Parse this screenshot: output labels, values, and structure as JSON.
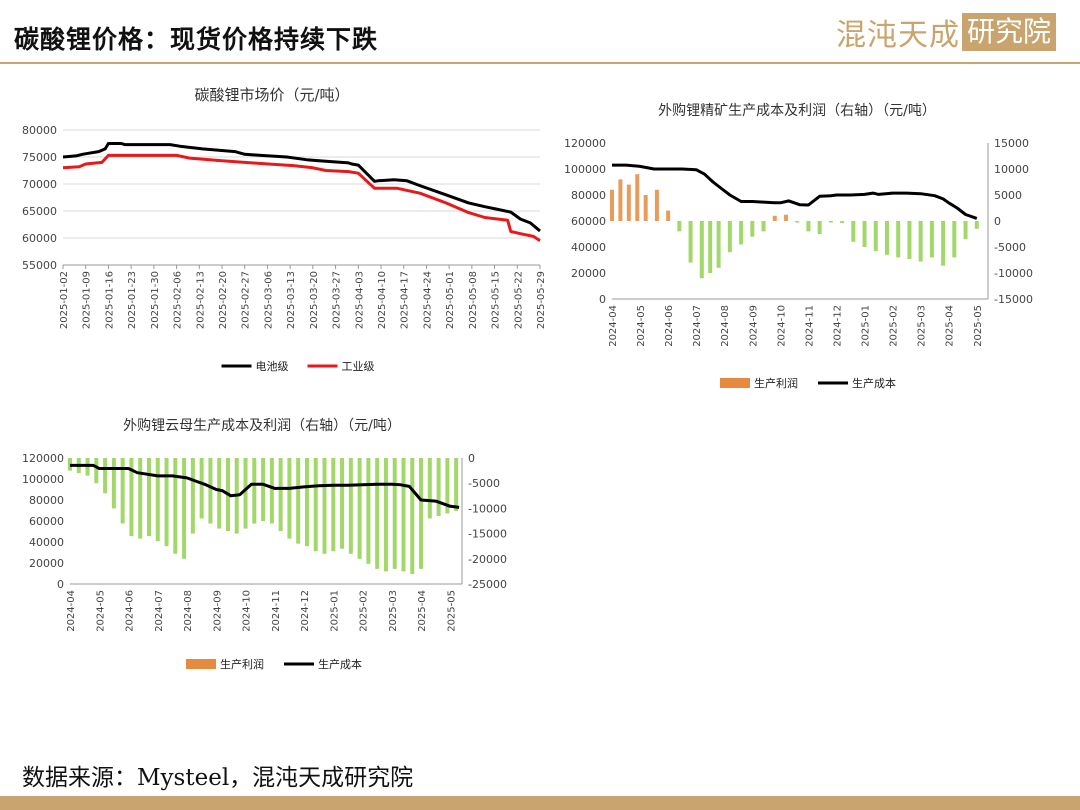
{
  "page": {
    "title": "碳酸锂价格：现货价格持续下跌",
    "logo_left": "混沌天成",
    "logo_right": "研究院",
    "source": "数据来源：Mysteel，混沌天成研究院",
    "accent_color": "#c9a46e"
  },
  "chart_data": [
    {
      "id": "c1",
      "type": "line",
      "title": "碳酸锂市场价（元/吨）",
      "ylim": [
        55000,
        80000
      ],
      "yticks": [
        55000,
        60000,
        65000,
        70000,
        75000,
        80000
      ],
      "xticks": [
        "2025-01-02",
        "2025-01-09",
        "2025-01-16",
        "2025-01-23",
        "2025-01-30",
        "2025-02-06",
        "2025-02-13",
        "2025-02-20",
        "2025-02-27",
        "2025-03-06",
        "2025-03-13",
        "2025-03-20",
        "2025-03-27",
        "2025-04-03",
        "2025-04-10",
        "2025-04-17",
        "2025-04-24",
        "2025-05-01",
        "2025-05-08",
        "2025-05-15",
        "2025-05-22",
        "2025-05-29"
      ],
      "legend_position": "bottom",
      "grid": true,
      "series": [
        {
          "name": "电池级",
          "color": "#000000",
          "x": [
            "2025-01-02",
            "2025-01-06",
            "2025-01-08",
            "2025-01-10",
            "2025-01-13",
            "2025-01-15",
            "2025-01-16",
            "2025-01-20",
            "2025-01-21",
            "2025-02-04",
            "2025-02-07",
            "2025-02-14",
            "2025-02-24",
            "2025-02-27",
            "2025-03-04",
            "2025-03-12",
            "2025-03-18",
            "2025-03-24",
            "2025-03-31",
            "2025-04-01",
            "2025-04-03",
            "2025-04-08",
            "2025-04-09",
            "2025-04-14",
            "2025-04-18",
            "2025-04-22",
            "2025-04-30",
            "2025-05-07",
            "2025-05-12",
            "2025-05-16",
            "2025-05-20",
            "2025-05-23",
            "2025-05-26",
            "2025-05-28",
            "2025-05-29"
          ],
          "y": [
            75000,
            75200,
            75500,
            75700,
            76000,
            76500,
            77500,
            77500,
            77300,
            77300,
            77000,
            76500,
            76000,
            75500,
            75300,
            75000,
            74500,
            74200,
            73900,
            73700,
            73500,
            70500,
            70600,
            70800,
            70600,
            69700,
            68000,
            66500,
            65800,
            65300,
            64800,
            63500,
            62800,
            61800,
            61300
          ]
        },
        {
          "name": "工业级",
          "color": "#e8191b",
          "x": [
            "2025-01-02",
            "2025-01-07",
            "2025-01-09",
            "2025-01-14",
            "2025-01-16",
            "2025-02-06",
            "2025-02-10",
            "2025-02-20",
            "2025-03-04",
            "2025-03-14",
            "2025-03-20",
            "2025-03-24",
            "2025-03-31",
            "2025-04-03",
            "2025-04-08",
            "2025-04-15",
            "2025-04-22",
            "2025-04-30",
            "2025-05-07",
            "2025-05-12",
            "2025-05-19",
            "2025-05-20",
            "2025-05-23",
            "2025-05-27",
            "2025-05-29"
          ],
          "y": [
            73000,
            73200,
            73700,
            74000,
            75300,
            75300,
            74800,
            74300,
            73800,
            73400,
            73000,
            72500,
            72300,
            72000,
            69200,
            69200,
            68300,
            66500,
            64700,
            63800,
            63300,
            61200,
            60800,
            60300,
            59500
          ]
        }
      ]
    },
    {
      "id": "c2",
      "type": "bar",
      "title": "外购锂精矿生产成本及利润（右轴）（元/吨）",
      "ylim": [
        0,
        120000
      ],
      "yticks": [
        0,
        20000,
        40000,
        60000,
        80000,
        100000,
        120000
      ],
      "y2lim": [
        -15000,
        15000
      ],
      "y2ticks": [
        -15000,
        -10000,
        -5000,
        0,
        5000,
        10000,
        15000
      ],
      "xticks": [
        "2024-04",
        "2024-05",
        "2024-06",
        "2024-07",
        "2024-08",
        "2024-09",
        "2024-10",
        "2024-11",
        "2024-12",
        "2025-01",
        "2025-02",
        "2025-03",
        "2025-04",
        "2025-05"
      ],
      "legend_position": "bottom",
      "series": [
        {
          "name": "生产利润",
          "axis": "right",
          "color_pos": "#e58a3e",
          "color_neg": "#92d050",
          "x": [
            0,
            0.3,
            0.6,
            0.9,
            1.2,
            1.6,
            2.0,
            2.4,
            2.8,
            3.2,
            3.5,
            3.8,
            4.2,
            4.6,
            5.0,
            5.4,
            5.8,
            6.2,
            6.6,
            7.0,
            7.4,
            7.8,
            8.2,
            8.6,
            9.0,
            9.4,
            9.8,
            10.2,
            10.6,
            11.0,
            11.4,
            11.8,
            12.2,
            12.6,
            13.0
          ],
          "y": [
            6000,
            8000,
            7000,
            9000,
            5000,
            6000,
            2000,
            -2000,
            -8000,
            -11000,
            -10000,
            -9000,
            -6000,
            -4500,
            -3000,
            -2000,
            1000,
            1200,
            -300,
            -2000,
            -2500,
            -300,
            -400,
            -4000,
            -5000,
            -5800,
            -6500,
            -7000,
            -7300,
            -7800,
            -7000,
            -8600,
            -7000,
            -3500,
            -1500
          ]
        },
        {
          "name": "生产成本",
          "axis": "left",
          "color": "#000000",
          "x": [
            0,
            0.5,
            1.0,
            1.5,
            2.0,
            2.5,
            3.0,
            3.3,
            3.6,
            3.9,
            4.2,
            4.6,
            5.0,
            5.4,
            5.8,
            6.0,
            6.3,
            6.7,
            7.0,
            7.4,
            7.8,
            8.0,
            8.5,
            9.0,
            9.3,
            9.5,
            10.0,
            10.5,
            11.0,
            11.5,
            11.8,
            12.0,
            12.3,
            12.6,
            13.0
          ],
          "y": [
            103000,
            103000,
            102000,
            100000,
            100000,
            100000,
            99500,
            96000,
            90000,
            85000,
            80000,
            75000,
            75000,
            74500,
            74000,
            74000,
            75500,
            72500,
            72300,
            79000,
            79500,
            80000,
            80000,
            80500,
            81500,
            80500,
            81500,
            81500,
            81000,
            79500,
            77000,
            74000,
            70000,
            65000,
            62000
          ]
        }
      ]
    },
    {
      "id": "c3",
      "type": "bar",
      "title": "外购锂云母生产成本及利润（右轴）（元/吨）",
      "ylim": [
        0,
        120000
      ],
      "yticks": [
        0,
        20000,
        40000,
        60000,
        80000,
        100000,
        120000
      ],
      "y2lim": [
        -25000,
        0
      ],
      "y2ticks": [
        -25000,
        -20000,
        -15000,
        -10000,
        -5000,
        0
      ],
      "xticks": [
        "2024-04",
        "2024-05",
        "2024-06",
        "2024-07",
        "2024-08",
        "2024-09",
        "2024-10",
        "2024-11",
        "2024-12",
        "2025-01",
        "2025-02",
        "2025-03",
        "2025-04",
        "2025-05"
      ],
      "legend_position": "bottom",
      "series": [
        {
          "name": "生产利润",
          "axis": "right",
          "color_pos": "#e58a3e",
          "color_neg": "#92d050",
          "x": [
            0,
            0.3,
            0.6,
            0.9,
            1.2,
            1.5,
            1.8,
            2.1,
            2.4,
            2.7,
            3.0,
            3.3,
            3.6,
            3.9,
            4.2,
            4.5,
            4.8,
            5.1,
            5.4,
            5.7,
            6.0,
            6.3,
            6.6,
            6.9,
            7.2,
            7.5,
            7.8,
            8.1,
            8.4,
            8.7,
            9.0,
            9.3,
            9.6,
            9.9,
            10.2,
            10.5,
            10.8,
            11.1,
            11.4,
            11.7,
            12.0,
            12.3,
            12.6,
            12.9,
            13.2
          ],
          "y": [
            -2500,
            -3000,
            -3500,
            -5000,
            -7000,
            -10000,
            -13000,
            -15500,
            -16000,
            -15500,
            -16500,
            -17500,
            -19000,
            -20000,
            -15000,
            -12000,
            -13000,
            -14000,
            -14500,
            -15000,
            -14000,
            -13000,
            -12500,
            -13000,
            -14500,
            -16000,
            -17000,
            -17500,
            -18500,
            -19000,
            -18500,
            -18000,
            -19000,
            -20000,
            -21000,
            -22000,
            -22500,
            -22000,
            -22500,
            -23000,
            -22000,
            -12000,
            -11500,
            -11000,
            -10500
          ]
        },
        {
          "name": "生产成本",
          "axis": "left",
          "color": "#000000",
          "x": [
            0,
            0.8,
            1.0,
            2.0,
            2.3,
            3.0,
            3.5,
            4.0,
            4.3,
            4.6,
            5.0,
            5.2,
            5.5,
            5.8,
            6.2,
            6.6,
            7.0,
            7.5,
            8.0,
            8.5,
            9.0,
            9.5,
            10.0,
            10.5,
            11.0,
            11.3,
            11.6,
            12.0,
            12.5,
            13.0,
            13.3
          ],
          "y": [
            113000,
            113000,
            110000,
            110000,
            106000,
            103000,
            103000,
            101000,
            98000,
            95000,
            90000,
            89000,
            84000,
            85000,
            95000,
            95000,
            91000,
            91000,
            92500,
            93500,
            94000,
            94000,
            94500,
            95000,
            95000,
            94500,
            93000,
            80000,
            79000,
            74000,
            73000
          ]
        }
      ]
    }
  ],
  "legends": {
    "c1": [
      "电池级",
      "工业级"
    ],
    "c2": [
      "生产利润",
      "生产成本"
    ],
    "c3": [
      "生产利润",
      "生产成本"
    ]
  }
}
